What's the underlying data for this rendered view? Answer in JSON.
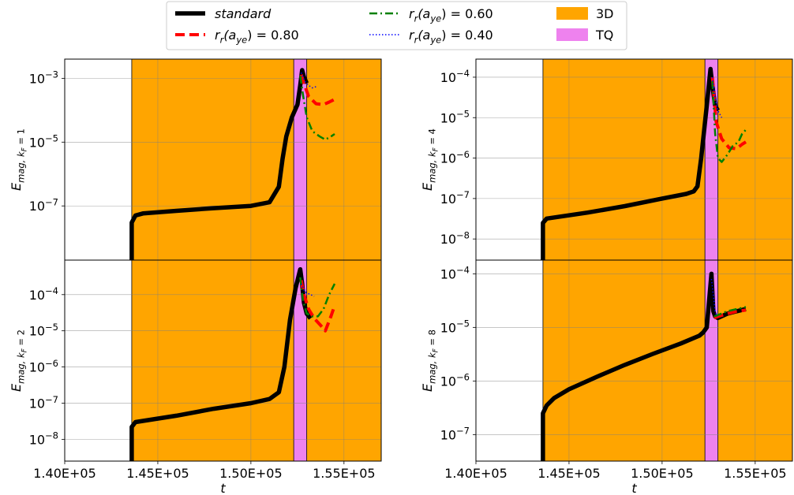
{
  "chart_data": [
    {
      "panel": "top-left",
      "type": "line",
      "ylabel": "E_{mag, k_F = 1}",
      "y_scale": "log",
      "ylim": [
        2e-09,
        0.004
      ],
      "y_tick_values": [
        1e-07,
        1e-05,
        0.001
      ],
      "y_tick_labels": [
        "10^-7",
        "10^-5",
        "10^-3"
      ],
      "show_x_tick_labels": false,
      "series": [
        {
          "name": "standard",
          "x": [
            143600,
            143600,
            143800,
            144200,
            146000,
            148000,
            150000,
            151000,
            151500,
            151700,
            151900,
            152200,
            152500,
            152650,
            152750,
            152850,
            153000
          ],
          "y": [
            2e-09,
            3e-08,
            5e-08,
            5.8e-08,
            7e-08,
            8.5e-08,
            1e-07,
            1.3e-07,
            4e-07,
            3e-06,
            1.5e-05,
            6e-05,
            0.00015,
            0.0006,
            0.0018,
            0.0011,
            0.0007
          ]
        },
        {
          "name": "r_r(a_ye) = 0.80",
          "x": [
            152700,
            152850,
            153100,
            153500,
            153900,
            154200,
            154500
          ],
          "y": [
            0.0013,
            0.0007,
            0.00027,
            0.00016,
            0.00015,
            0.00018,
            0.00022
          ]
        },
        {
          "name": "r_r(a_ye) = 0.60",
          "x": [
            152650,
            152800,
            153000,
            153300,
            153700,
            154000,
            154300,
            154500
          ],
          "y": [
            0.0012,
            0.0003,
            6e-05,
            2.2e-05,
            1.5e-05,
            1.2e-05,
            1.5e-05,
            1.8e-05
          ]
        },
        {
          "name": "r_r(a_ye) = 0.40",
          "x": [
            152700,
            152900,
            153100,
            153300,
            153500
          ],
          "y": [
            0.0015,
            0.0008,
            0.0006,
            0.0005,
            0.00055
          ]
        }
      ]
    },
    {
      "panel": "top-right",
      "type": "line",
      "ylabel": "E_{mag, k_F = 4}",
      "y_scale": "log",
      "ylim": [
        3e-09,
        0.00028
      ],
      "y_tick_values": [
        1e-08,
        1e-07,
        1e-06,
        1e-05,
        0.0001
      ],
      "y_tick_labels": [
        "10^-8",
        "10^-7",
        "10^-6",
        "10^-5",
        "10^-4"
      ],
      "show_x_tick_labels": false,
      "series": [
        {
          "name": "standard",
          "x": [
            143600,
            143600,
            143800,
            146000,
            148000,
            150000,
            151300,
            151700,
            151900,
            152100,
            152400,
            152600,
            152700,
            152850,
            153000
          ],
          "y": [
            3e-09,
            2.5e-08,
            3.2e-08,
            4.5e-08,
            6.5e-08,
            1e-07,
            1.3e-07,
            1.5e-07,
            2e-07,
            1e-06,
            2e-05,
            0.00016,
            6e-05,
            2e-05,
            1.5e-05
          ]
        },
        {
          "name": "r_r(a_ye) = 0.80",
          "x": [
            152700,
            152900,
            153200,
            153600,
            154000,
            154300,
            154500
          ],
          "y": [
            0.0001,
            8e-06,
            3e-06,
            1.8e-06,
            1.7e-06,
            2.2e-06,
            2.5e-06
          ]
        },
        {
          "name": "r_r(a_ye) = 0.60",
          "x": [
            152700,
            152850,
            153000,
            153200,
            153500,
            153800,
            154100,
            154300,
            154500
          ],
          "y": [
            8e-05,
            4e-06,
            1e-06,
            8e-07,
            1.2e-06,
            2e-06,
            2.5e-06,
            4e-06,
            5e-06
          ]
        },
        {
          "name": "r_r(a_ye) = 0.40",
          "x": [
            152700,
            152850,
            153000,
            153200
          ],
          "y": [
            0.0001,
            3e-05,
            1.5e-05,
            1e-05
          ]
        }
      ]
    },
    {
      "panel": "bottom-left",
      "type": "line",
      "ylabel": "E_{mag, k_F = 2}",
      "y_scale": "log",
      "ylim": [
        2.5e-09,
        0.0009
      ],
      "y_tick_values": [
        1e-08,
        1e-07,
        1e-06,
        1e-05,
        0.0001
      ],
      "y_tick_labels": [
        "10^-8",
        "10^-7",
        "10^-6",
        "10^-5",
        "10^-4"
      ],
      "show_x_tick_labels": true,
      "x_tick_values": [
        140000,
        145000,
        150000,
        155000
      ],
      "x_tick_labels": [
        "1.40E+05",
        "1.45E+05",
        "1.50E+05",
        "1.55E+05"
      ],
      "xlabel": "t",
      "series": [
        {
          "name": "standard",
          "x": [
            143600,
            143600,
            143800,
            146000,
            148000,
            150000,
            151000,
            151500,
            151800,
            152100,
            152400,
            152650,
            152750,
            152850,
            153000,
            153200
          ],
          "y": [
            2.5e-09,
            2.2e-08,
            3e-08,
            4.5e-08,
            7e-08,
            1e-07,
            1.3e-07,
            2e-07,
            1e-06,
            2e-05,
            0.00015,
            0.0005,
            0.0002,
            6e-05,
            3e-05,
            2.2e-05
          ]
        },
        {
          "name": "r_r(a_ye) = 0.80",
          "x": [
            152700,
            152850,
            153100,
            153400,
            153700,
            154000,
            154300,
            154500
          ],
          "y": [
            0.00025,
            0.0001,
            4e-05,
            2.2e-05,
            1.5e-05,
            1e-05,
            2.5e-05,
            5e-05
          ]
        },
        {
          "name": "r_r(a_ye) = 0.60",
          "x": [
            152650,
            152800,
            153000,
            153300,
            153600,
            153900,
            154200,
            154500
          ],
          "y": [
            0.0003,
            7e-05,
            3e-05,
            2.5e-05,
            2.5e-05,
            4e-05,
            0.0001,
            0.0002
          ]
        },
        {
          "name": "r_r(a_ye) = 0.40",
          "x": [
            152700,
            152900,
            153200,
            153400
          ],
          "y": [
            0.0002,
            0.00012,
            0.0001,
            9e-05
          ]
        }
      ]
    },
    {
      "panel": "bottom-right",
      "type": "line",
      "ylabel": "E_{mag, k_F = 8}",
      "y_scale": "log",
      "ylim": [
        3.2e-08,
        0.00018
      ],
      "y_tick_values": [
        1e-07,
        1e-06,
        1e-05,
        0.0001
      ],
      "y_tick_labels": [
        "10^-7",
        "10^-6",
        "10^-5",
        "10^-4"
      ],
      "show_x_tick_labels": true,
      "x_tick_values": [
        140000,
        145000,
        150000,
        155000
      ],
      "x_tick_labels": [
        "1.40E+05",
        "1.45E+05",
        "1.50E+05",
        "1.55E+05"
      ],
      "xlabel": "t",
      "series": [
        {
          "name": "standard",
          "x": [
            143600,
            143600,
            143800,
            144200,
            145000,
            146500,
            148000,
            149500,
            151000,
            152000,
            152200,
            152400,
            152650,
            152750,
            152850,
            153000,
            153500,
            154000,
            154500
          ],
          "y": [
            3.2e-08,
            2.5e-07,
            3.5e-07,
            4.8e-07,
            7e-07,
            1.2e-06,
            2e-06,
            3.2e-06,
            5e-06,
            7e-06,
            8e-06,
            1e-05,
            0.0001,
            2e-05,
            1.6e-05,
            1.5e-05,
            1.8e-05,
            2e-05,
            2.2e-05
          ]
        },
        {
          "name": "r_r(a_ye) = 0.80",
          "x": [
            152800,
            153000,
            153500,
            154000,
            154500
          ],
          "y": [
            1.5e-05,
            1.6e-05,
            1.8e-05,
            2e-05,
            2.1e-05
          ]
        },
        {
          "name": "r_r(a_ye) = 0.60",
          "x": [
            152800,
            153000,
            153500,
            154000,
            154500
          ],
          "y": [
            1.6e-05,
            1.7e-05,
            2e-05,
            2.2e-05,
            2.4e-05
          ]
        },
        {
          "name": "r_r(a_ye) = 0.40",
          "x": [
            152650,
            152750,
            152850,
            152950
          ],
          "y": [
            8e-05,
            4e-05,
            2e-05,
            1.6e-05
          ]
        }
      ]
    }
  ],
  "shared": {
    "xlim": [
      140000,
      157000
    ],
    "shaded_regions": [
      {
        "label": "3D",
        "start": 143600,
        "end": 157000,
        "color": "#FFA500"
      },
      {
        "label": "TQ",
        "start": 152300,
        "end": 153000,
        "color": "#EE82EE"
      }
    ],
    "series_styles": [
      {
        "name": "standard",
        "color": "#000000",
        "style": "solid",
        "width": 5.5
      },
      {
        "name": "r_r(a_ye) = 0.80",
        "color": "#FF0000",
        "style": "dashed",
        "width": 4
      },
      {
        "name": "r_r(a_ye) = 0.60",
        "color": "#008000",
        "style": "dashdot",
        "width": 2.5
      },
      {
        "name": "r_r(a_ye) = 0.40",
        "color": "#0000FF",
        "style": "dotted",
        "width": 1.5
      }
    ],
    "grid": true
  },
  "legend": {
    "placement": "top-center",
    "entries": [
      {
        "label": "standard",
        "kind": "line",
        "color": "#000000"
      },
      {
        "label": "r_r(a_ye) = 0.80",
        "kind": "line",
        "color": "#FF0000"
      },
      {
        "label": "r_r(a_ye) = 0.60",
        "kind": "line",
        "color": "#008000"
      },
      {
        "label": "r_r(a_ye) = 0.40",
        "kind": "line",
        "color": "#0000FF"
      },
      {
        "label": "3D",
        "kind": "patch",
        "color": "#FFA500"
      },
      {
        "label": "TQ",
        "kind": "patch",
        "color": "#EE82EE"
      }
    ]
  }
}
